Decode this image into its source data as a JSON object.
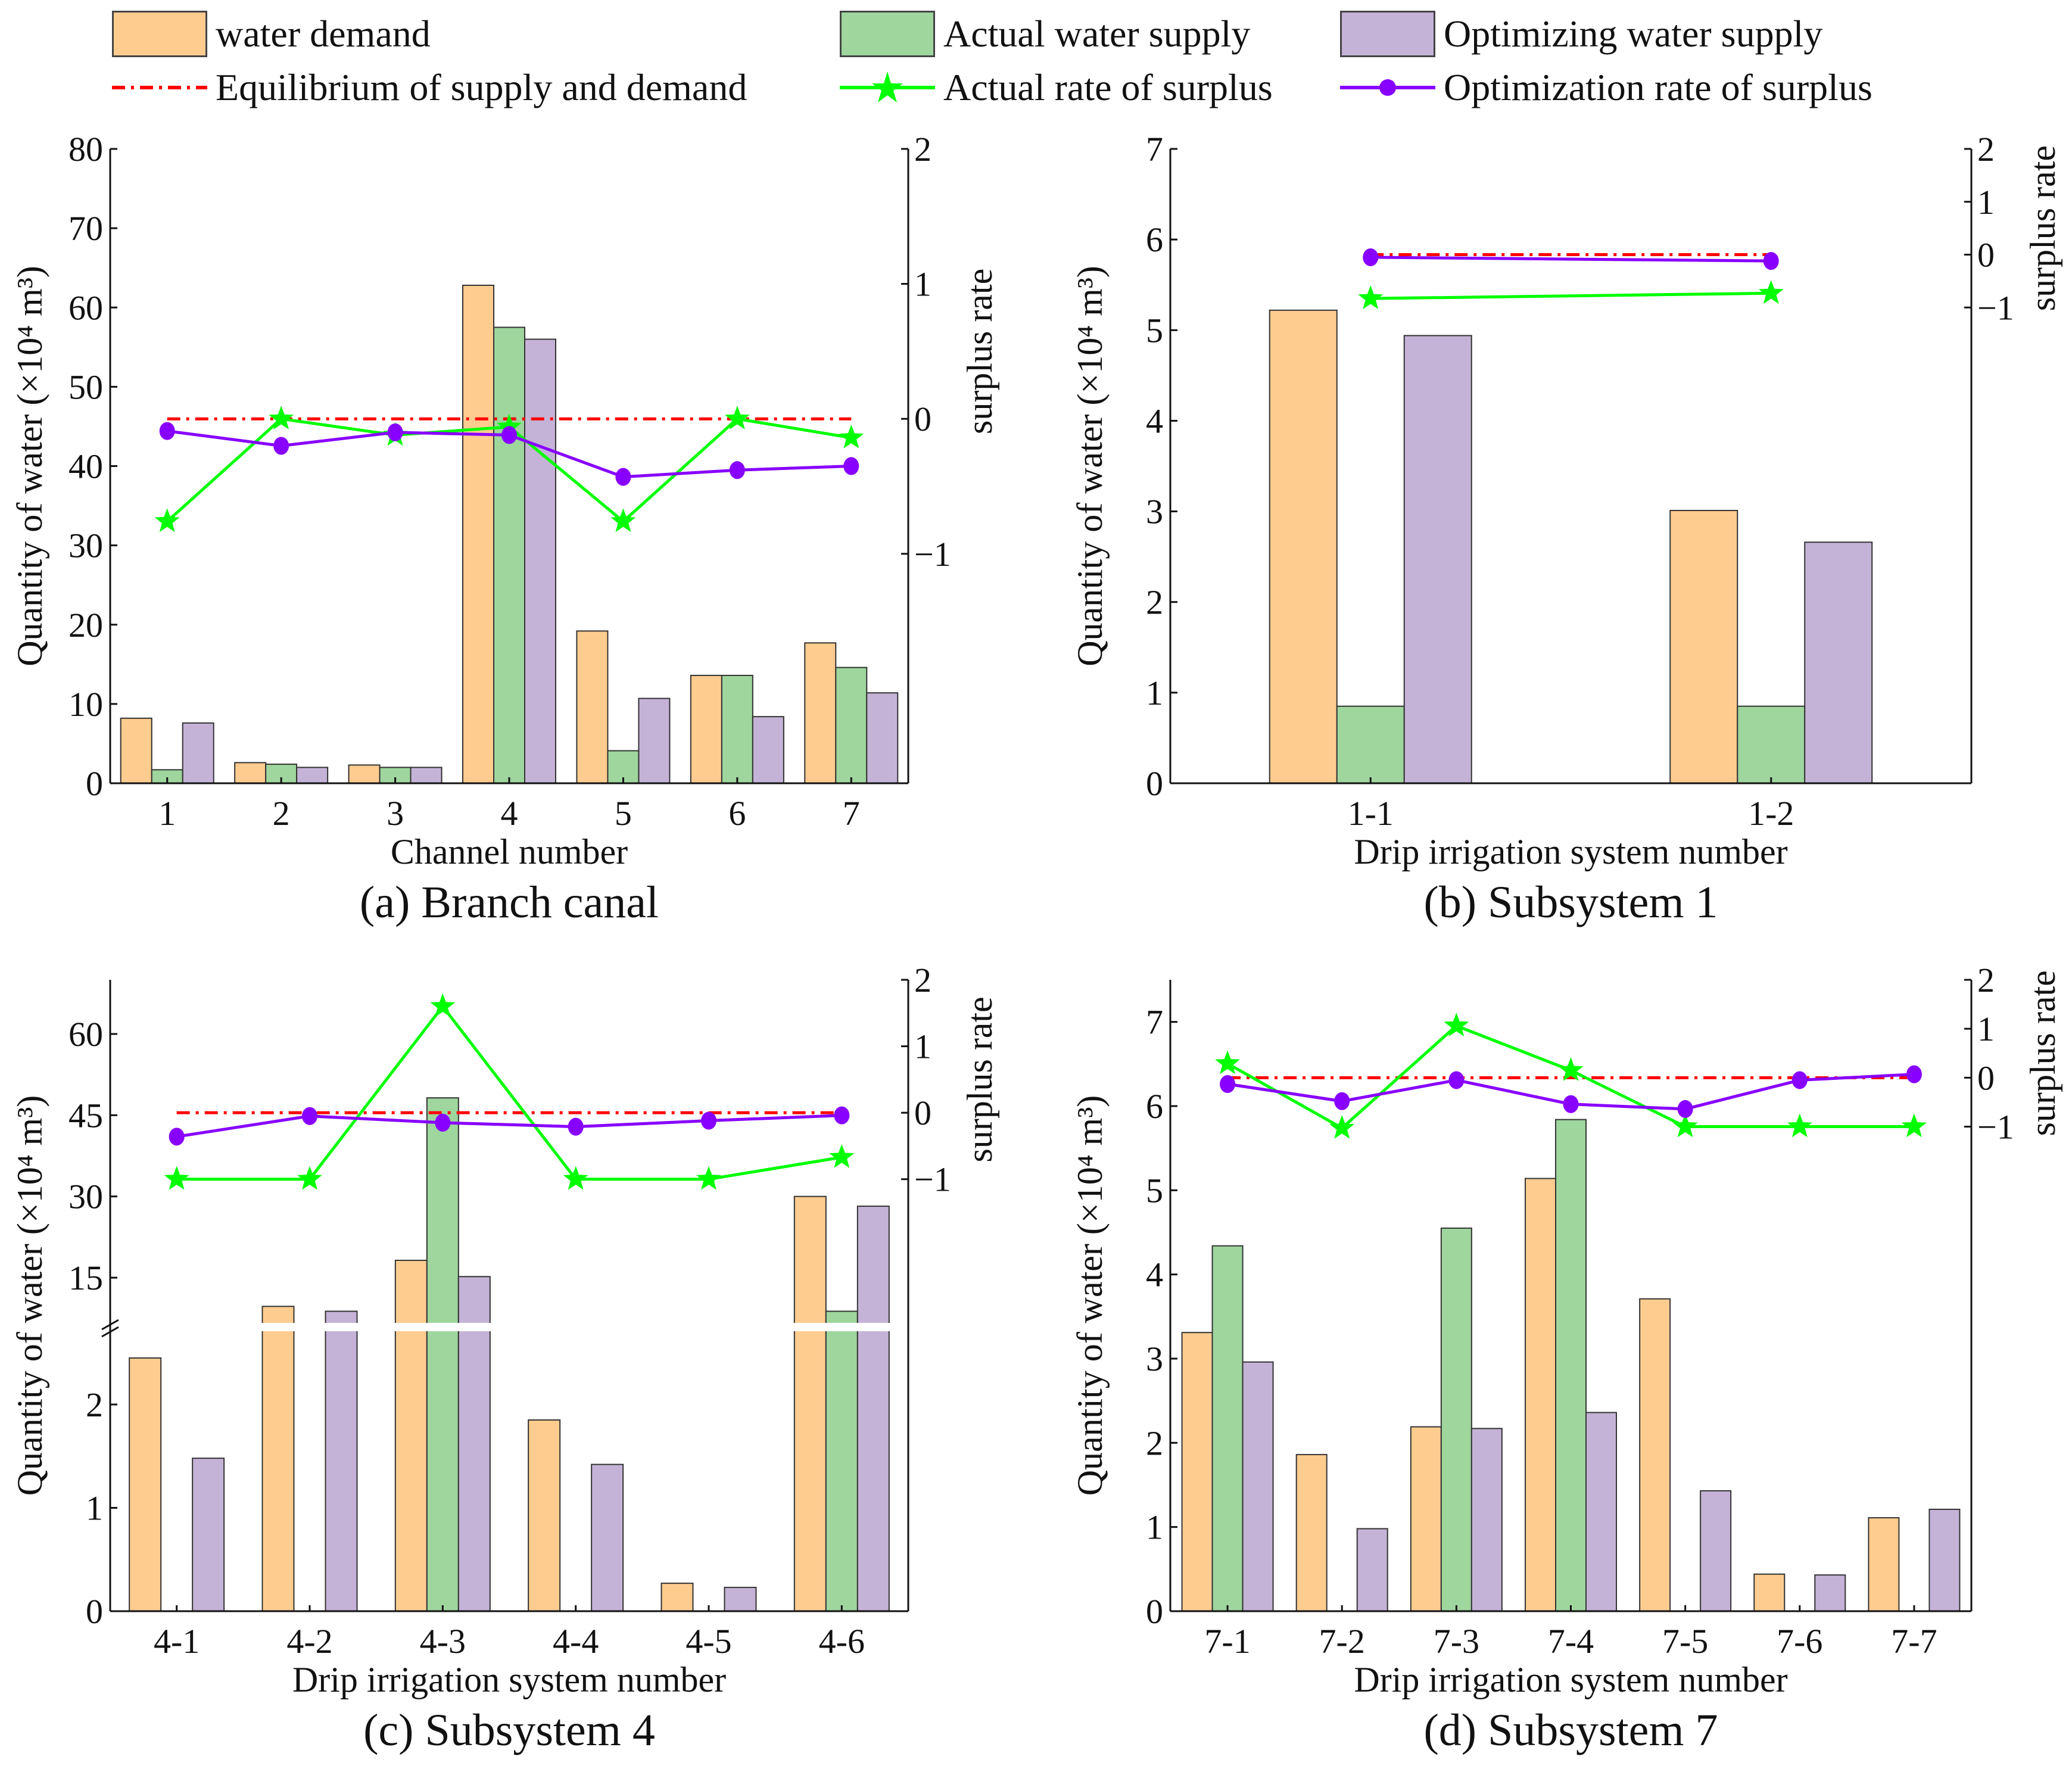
{
  "legend": {
    "items": [
      {
        "label": "water demand",
        "kind": "bar",
        "color": "#FFCC90"
      },
      {
        "label": "Actual water supply",
        "kind": "bar",
        "color": "#9ED69D"
      },
      {
        "label": "Optimizing water supply",
        "kind": "bar",
        "color": "#C5B3D7"
      },
      {
        "label": "Equilibrium of supply and demand",
        "kind": "dashdot",
        "color": "#FF0000"
      },
      {
        "label": "Actual rate of surplus",
        "kind": "star-line",
        "color": "#00FF00"
      },
      {
        "label": "Optimization rate of surplus",
        "kind": "dot-line",
        "color": "#8800FF"
      }
    ]
  },
  "chart_data": [
    {
      "type": "bar",
      "title": "(a) Branch canal",
      "xlabel": "Channel number",
      "ylabel": "Quantity of water (×10⁴ m³)",
      "y2label": "surplus rate",
      "categories": [
        "1",
        "2",
        "3",
        "4",
        "5",
        "6",
        "7"
      ],
      "ylim": [
        0,
        80
      ],
      "yticks": [
        0,
        10,
        20,
        30,
        40,
        50,
        60,
        70,
        80
      ],
      "y2lim": [
        -2.7,
        2
      ],
      "y2ticks": [
        -1,
        0,
        1,
        2
      ],
      "series": [
        {
          "name": "water demand",
          "values": [
            8.2,
            2.6,
            2.3,
            62.8,
            19.2,
            13.6,
            17.7
          ]
        },
        {
          "name": "Actual water supply",
          "values": [
            1.7,
            2.4,
            2.0,
            57.5,
            4.1,
            13.6,
            14.6
          ]
        },
        {
          "name": "Optimizing water supply",
          "values": [
            7.6,
            2.0,
            2.0,
            56.0,
            10.7,
            8.4,
            11.4
          ]
        }
      ],
      "lines": [
        {
          "name": "Equilibrium of supply and demand",
          "values": [
            0,
            0,
            0,
            0,
            0,
            0,
            0
          ]
        },
        {
          "name": "Actual rate of surplus",
          "values": [
            -0.76,
            0.0,
            -0.12,
            -0.06,
            -0.76,
            0.0,
            -0.14
          ]
        },
        {
          "name": "Optimization rate of surplus",
          "values": [
            -0.09,
            -0.2,
            -0.1,
            -0.12,
            -0.43,
            -0.38,
            -0.35
          ]
        }
      ]
    },
    {
      "type": "bar",
      "title": "(b) Subsystem 1",
      "xlabel": "Drip irrigation system number",
      "ylabel": "Quantity of water (×10⁴ m³)",
      "y2label": "surplus rate",
      "categories": [
        "1-1",
        "1-2"
      ],
      "ylim": [
        0,
        7
      ],
      "yticks": [
        0,
        1,
        2,
        3,
        4,
        5,
        6,
        7
      ],
      "y2lim": [
        -10,
        2
      ],
      "y2ticks": [
        -1,
        0,
        1,
        2
      ],
      "series": [
        {
          "name": "water demand",
          "values": [
            5.22,
            3.01
          ]
        },
        {
          "name": "Actual water supply",
          "values": [
            0.85,
            0.85
          ]
        },
        {
          "name": "Optimizing water supply",
          "values": [
            4.94,
            2.66
          ]
        }
      ],
      "lines": [
        {
          "name": "Equilibrium of supply and demand",
          "values": [
            0,
            0
          ]
        },
        {
          "name": "Actual rate of surplus",
          "values": [
            -0.83,
            -0.73
          ]
        },
        {
          "name": "Optimization rate of surplus",
          "values": [
            -0.05,
            -0.12
          ]
        }
      ]
    },
    {
      "type": "bar",
      "title": "(c) Subsystem 4",
      "xlabel": "Drip irrigation system number",
      "ylabel": "Quantity of water (×10⁴ m³)",
      "y2label": "surplus rate",
      "categories": [
        "4-1",
        "4-2",
        "4-3",
        "4-4",
        "4-5",
        "4-6"
      ],
      "broken_axis": {
        "lower": [
          0,
          2.68
        ],
        "upper": [
          7.2,
          70
        ],
        "lower_ticks": [
          0,
          1,
          2
        ],
        "upper_ticks": [
          15,
          30,
          45,
          60
        ]
      },
      "y2lim": [
        -7.5,
        2
      ],
      "y2ticks": [
        -1,
        0,
        1,
        2
      ],
      "series": [
        {
          "name": "water demand",
          "values": [
            2.45,
            9.7,
            18.2,
            1.85,
            0.27,
            30.0
          ]
        },
        {
          "name": "Actual water supply",
          "values": [
            0,
            0,
            48.2,
            0,
            0,
            8.8
          ]
        },
        {
          "name": "Optimizing water supply",
          "values": [
            1.48,
            8.8,
            15.2,
            1.42,
            0.23,
            28.2
          ]
        }
      ],
      "lines": [
        {
          "name": "Equilibrium of supply and demand",
          "values": [
            0,
            0,
            0,
            0,
            0,
            0
          ]
        },
        {
          "name": "Actual rate of surplus",
          "values": [
            -1.0,
            -1.0,
            1.6,
            -1.0,
            -1.0,
            -0.67
          ]
        },
        {
          "name": "Optimization rate of surplus",
          "values": [
            -0.36,
            -0.05,
            -0.15,
            -0.21,
            -0.12,
            -0.04
          ]
        }
      ]
    },
    {
      "type": "bar",
      "title": "(d) Subsystem 7",
      "xlabel": "Drip irrigation system number",
      "ylabel": "Quantity of water (×10⁴ m³)",
      "y2label": "surplus rate",
      "categories": [
        "7-1",
        "7-2",
        "7-3",
        "7-4",
        "7-5",
        "7-6",
        "7-7"
      ],
      "ylim": [
        0,
        7.5
      ],
      "yticks": [
        0,
        1,
        2,
        3,
        4,
        5,
        6,
        7
      ],
      "y2lim": [
        -10.9,
        2
      ],
      "y2ticks": [
        -1,
        0,
        1,
        2
      ],
      "series": [
        {
          "name": "water demand",
          "values": [
            3.31,
            1.86,
            2.19,
            5.14,
            3.71,
            0.44,
            1.11
          ]
        },
        {
          "name": "Actual water supply",
          "values": [
            4.34,
            0,
            4.55,
            5.84,
            0,
            0,
            0
          ]
        },
        {
          "name": "Optimizing water supply",
          "values": [
            2.96,
            0.98,
            2.17,
            2.36,
            1.43,
            0.43,
            1.21
          ]
        }
      ],
      "lines": [
        {
          "name": "Equilibrium of supply and demand",
          "values": [
            0,
            0,
            0,
            0,
            0,
            0,
            0
          ]
        },
        {
          "name": "Actual rate of surplus",
          "values": [
            0.29,
            -1.03,
            1.06,
            0.15,
            -1.0,
            -1.0,
            -1.0
          ]
        },
        {
          "name": "Optimization rate of surplus",
          "values": [
            -0.13,
            -0.48,
            -0.05,
            -0.54,
            -0.64,
            -0.05,
            0.07
          ]
        }
      ]
    }
  ]
}
